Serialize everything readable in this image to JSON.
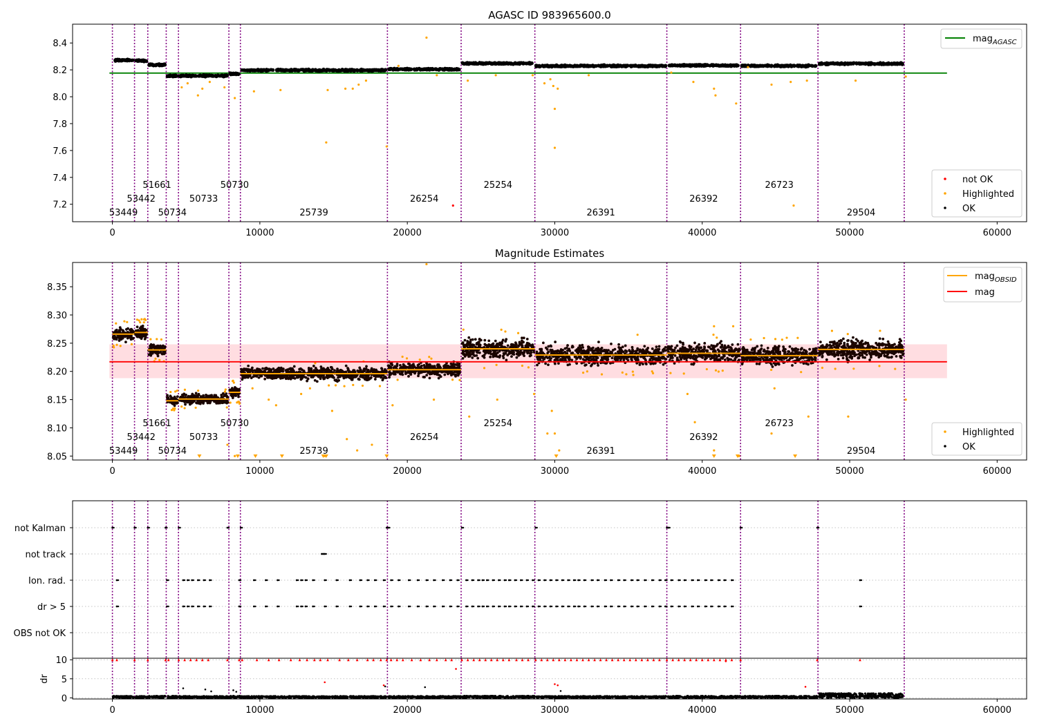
{
  "chart_data": [
    {
      "type": "scatter",
      "title": "AGASC ID 983965600.0",
      "xlim": [
        -2700,
        62000
      ],
      "ylim": [
        7.07,
        8.54
      ],
      "xticks": [
        0,
        10000,
        20000,
        30000,
        40000,
        50000,
        60000
      ],
      "yticks": [
        7.2,
        7.4,
        7.6,
        7.8,
        8.0,
        8.2,
        8.4
      ],
      "ytick_labels": [
        "7.2",
        "7.4",
        "7.6",
        "7.8",
        "8.0",
        "8.2",
        "8.4"
      ],
      "legend_upper": {
        "placement": "top-right",
        "entries": [
          {
            "label_main": "mag",
            "label_sub": "AGASC",
            "color": "#008000",
            "kind": "line"
          }
        ]
      },
      "legend_lower": {
        "placement": "bottom-right",
        "entries": [
          {
            "label": "not OK",
            "color": "#ff0000",
            "kind": "dot"
          },
          {
            "label": "Highlighted",
            "color": "#ffa500",
            "kind": "dot"
          },
          {
            "label": "OK",
            "color": "#000000",
            "kind": "dot"
          }
        ]
      },
      "reference_line": {
        "y": 8.176,
        "x_range": [
          -200,
          56600
        ],
        "color": "#008000"
      },
      "band_values": [
        8.272,
        8.268,
        8.238,
        8.155,
        8.156,
        8.171,
        8.197,
        8.204,
        8.248,
        8.229,
        8.233,
        8.23,
        8.246,
        8.242,
        8.22
      ],
      "highlighted_points": [
        [
          4700,
          8.07
        ],
        [
          5100,
          8.1
        ],
        [
          5800,
          8.01
        ],
        [
          6100,
          8.06
        ],
        [
          6600,
          8.11
        ],
        [
          7600,
          8.07
        ],
        [
          8300,
          7.99
        ],
        [
          9600,
          8.04
        ],
        [
          11400,
          8.05
        ],
        [
          14500,
          7.66
        ],
        [
          14600,
          8.05
        ],
        [
          15800,
          8.06
        ],
        [
          16300,
          8.06
        ],
        [
          16700,
          8.09
        ],
        [
          17200,
          8.12
        ],
        [
          18600,
          7.63
        ],
        [
          19400,
          8.23
        ],
        [
          21300,
          8.44
        ],
        [
          22000,
          8.16
        ],
        [
          24100,
          8.12
        ],
        [
          26000,
          8.16
        ],
        [
          28500,
          8.16
        ],
        [
          29300,
          8.1
        ],
        [
          29700,
          8.13
        ],
        [
          29900,
          8.08
        ],
        [
          30000,
          7.91
        ],
        [
          30200,
          8.06
        ],
        [
          30000,
          7.62
        ],
        [
          32300,
          8.16
        ],
        [
          37900,
          8.18
        ],
        [
          39400,
          8.11
        ],
        [
          40800,
          8.06
        ],
        [
          40900,
          8.01
        ],
        [
          42300,
          7.95
        ],
        [
          43100,
          8.22
        ],
        [
          44700,
          8.09
        ],
        [
          46200,
          7.19
        ],
        [
          46000,
          8.11
        ],
        [
          47100,
          8.12
        ],
        [
          50400,
          8.12
        ],
        [
          53800,
          8.15
        ]
      ],
      "not_ok_points": [
        [
          23100,
          7.19
        ]
      ]
    },
    {
      "type": "scatter",
      "title": "Magnitude Estimates",
      "xlim": [
        -2700,
        62000
      ],
      "ylim": [
        8.043,
        8.393
      ],
      "xticks": [
        0,
        10000,
        20000,
        30000,
        40000,
        50000,
        60000
      ],
      "yticks": [
        8.05,
        8.1,
        8.15,
        8.2,
        8.25,
        8.3,
        8.35
      ],
      "ytick_labels": [
        "8.05",
        "8.10",
        "8.15",
        "8.20",
        "8.25",
        "8.30",
        "8.35"
      ],
      "legend_upper": {
        "placement": "top-right",
        "entries": [
          {
            "label_main": "mag",
            "label_sub": "OBSID",
            "color": "#ffa500",
            "kind": "line"
          },
          {
            "label_main": "mag",
            "label_sub": "",
            "color": "#ff0000",
            "kind": "line"
          }
        ]
      },
      "legend_lower": {
        "placement": "bottom-right",
        "entries": [
          {
            "label": "Highlighted",
            "color": "#ffa500",
            "kind": "dot"
          },
          {
            "label": "OK",
            "color": "#000000",
            "kind": "dot"
          }
        ]
      },
      "mean_line": {
        "y": 8.217,
        "x_range": [
          -200,
          56600
        ],
        "color": "#ff0000"
      },
      "std_band": {
        "y_range": [
          8.188,
          8.248
        ],
        "color": "#ffdde1"
      },
      "obsid_mags": [
        8.266,
        8.269,
        8.238,
        8.148,
        8.151,
        8.163,
        8.196,
        8.203,
        8.24,
        8.229,
        8.232,
        8.228,
        8.239,
        8.233,
        8.219
      ],
      "band_spread": [
        0.016,
        0.016,
        0.014,
        0.012,
        0.012,
        0.014,
        0.016,
        0.016,
        0.024,
        0.024,
        0.024,
        0.022,
        0.024,
        0.02,
        0.026
      ],
      "highlighted_points": [
        [
          9500,
          8.17
        ],
        [
          10600,
          8.15
        ],
        [
          11100,
          8.14
        ],
        [
          12800,
          8.16
        ],
        [
          13400,
          8.17
        ],
        [
          14400,
          8.05
        ],
        [
          14900,
          8.13
        ],
        [
          15900,
          8.08
        ],
        [
          16600,
          8.06
        ],
        [
          17600,
          8.07
        ],
        [
          19000,
          8.14
        ],
        [
          21300,
          8.39
        ],
        [
          21800,
          8.15
        ],
        [
          24200,
          8.12
        ],
        [
          26100,
          8.15
        ],
        [
          28600,
          8.16
        ],
        [
          29500,
          8.09
        ],
        [
          29800,
          8.13
        ],
        [
          30000,
          8.09
        ],
        [
          30300,
          8.06
        ],
        [
          32200,
          8.2
        ],
        [
          36600,
          8.2
        ],
        [
          39000,
          8.16
        ],
        [
          39500,
          8.11
        ],
        [
          40800,
          8.28
        ],
        [
          40800,
          8.06
        ],
        [
          42100,
          8.28
        ],
        [
          42500,
          8.05
        ],
        [
          44700,
          8.09
        ],
        [
          44900,
          8.17
        ],
        [
          47200,
          8.12
        ],
        [
          49900,
          8.12
        ],
        [
          53800,
          8.15
        ],
        [
          7800,
          8.07
        ],
        [
          8300,
          8.05
        ]
      ],
      "lower_limit_markers": [
        5900,
        8500,
        9700,
        11500,
        14300,
        14500,
        18600,
        30100,
        40800,
        42400,
        46300
      ]
    },
    {
      "type": "scatter",
      "title": "",
      "xlim": [
        -2700,
        62000
      ],
      "category_labels": [
        "not Kalman",
        "not track",
        "Ion. rad.",
        "dr > 5",
        "OBS not OK"
      ],
      "xticks": [
        0,
        10000,
        20000,
        30000,
        40000,
        50000,
        60000
      ],
      "category_points": {
        "not Kalman": [
          0,
          1500,
          2400,
          3600,
          4500,
          7800,
          8700,
          18600,
          18700,
          23700,
          28700,
          37600,
          37700,
          42600,
          47800
        ],
        "not track": [
          14200,
          14300,
          14400
        ],
        "Ion. rad.": [
          300,
          3700,
          4800,
          5100,
          5400,
          5800,
          6200,
          6600,
          8600,
          9600,
          10400,
          11200,
          12500,
          12800,
          13100,
          13600,
          14400,
          15200,
          16100,
          16800,
          17300,
          17800,
          18400,
          18900,
          19400,
          20100,
          20700,
          21300,
          21800,
          22400,
          22900,
          23400,
          24000,
          24400,
          24800,
          25100,
          25400,
          25800,
          26200,
          26600,
          26900,
          27300,
          27700,
          28100,
          28500,
          28900,
          29300,
          29700,
          30100,
          30500,
          30900,
          31300,
          31600,
          32000,
          32500,
          32900,
          33400,
          33800,
          34300,
          34700,
          35200,
          35600,
          36100,
          36600,
          37100,
          37500,
          37900,
          38400,
          38800,
          39300,
          39700,
          40200,
          40600,
          41100,
          41500,
          42000,
          50700
        ],
        "dr > 5": [
          300,
          3700,
          4800,
          5100,
          5400,
          5800,
          6200,
          6600,
          8600,
          9600,
          10400,
          11200,
          12500,
          12800,
          13100,
          13600,
          14400,
          15200,
          16100,
          16800,
          17300,
          17800,
          18400,
          18900,
          19400,
          20100,
          20700,
          21300,
          21800,
          22400,
          22900,
          23400,
          24000,
          24400,
          24800,
          25100,
          25400,
          25800,
          26200,
          26600,
          26900,
          27300,
          27700,
          28100,
          28500,
          28900,
          29300,
          29700,
          30100,
          30500,
          30900,
          31300,
          31600,
          32000,
          32500,
          32900,
          33400,
          33800,
          34300,
          34700,
          35200,
          35600,
          36100,
          36600,
          37100,
          37500,
          37900,
          38400,
          38800,
          39300,
          39700,
          40200,
          40600,
          41100,
          41500,
          42000,
          50700
        ],
        "OBS not OK": []
      },
      "grid": true
    },
    {
      "type": "scatter",
      "title": "",
      "xlim": [
        -2700,
        62000
      ],
      "ylim": [
        -0.3,
        10.4
      ],
      "yticks": [
        0,
        5,
        10
      ],
      "ylabel": "dr",
      "xticks": [
        0,
        10000,
        20000,
        30000,
        40000,
        50000,
        60000
      ],
      "grid": true,
      "red_points_at_10": [
        0,
        300,
        1500,
        2400,
        3600,
        3800,
        4500,
        4900,
        5300,
        5700,
        6100,
        6500,
        7800,
        8600,
        8800,
        9800,
        10600,
        11300,
        12100,
        12700,
        13200,
        13700,
        14100,
        14600,
        15400,
        16000,
        16600,
        17300,
        17700,
        18200,
        18600,
        18900,
        19300,
        19700,
        20300,
        20900,
        21500,
        22000,
        22600,
        23000,
        23700,
        24100,
        24500,
        24900,
        25300,
        25700,
        26100,
        26500,
        26900,
        27400,
        27800,
        28200,
        28700,
        29100,
        29500,
        29900,
        30300,
        30700,
        31100,
        31500,
        31900,
        32300,
        32700,
        33100,
        33500,
        33900,
        34300,
        34700,
        35100,
        35500,
        35900,
        36300,
        36700,
        37100,
        37600,
        38000,
        38400,
        38800,
        39200,
        39600,
        40000,
        40400,
        40800,
        41200,
        41600,
        42000,
        42600,
        47800,
        50700
      ],
      "red_points_other": [
        [
          23300,
          7.6
        ],
        [
          14400,
          4.1
        ],
        [
          30000,
          3.6
        ],
        [
          30200,
          3.3
        ],
        [
          47000,
          2.9
        ],
        [
          18400,
          3.3
        ],
        [
          41600,
          9.6
        ]
      ],
      "black_points_other": [
        [
          6300,
          2.2
        ],
        [
          6700,
          1.7
        ],
        [
          8200,
          2.0
        ],
        [
          8400,
          1.6
        ],
        [
          4800,
          2.5
        ],
        [
          21200,
          2.8
        ],
        [
          18500,
          3.0
        ],
        [
          30400,
          1.8
        ]
      ],
      "dr_bands": [
        0.5,
        0.45,
        0.5,
        0.5,
        0.45,
        0.5,
        0.45,
        0.45,
        0.5,
        0.45,
        0.5,
        0.5,
        1.2,
        1.1,
        0.9
      ]
    }
  ],
  "shared": {
    "obsid_boundaries": [
      0,
      1500,
      2400,
      3650,
      4480,
      7900,
      8680,
      18650,
      23650,
      28650,
      37600,
      42600,
      47850,
      53700
    ],
    "obsid_labels": [
      {
        "text": "53449",
        "x": 750,
        "row": 0
      },
      {
        "text": "53442",
        "x": 1950,
        "row": 1
      },
      {
        "text": "51661",
        "x": 3025,
        "row": 2
      },
      {
        "text": "50734",
        "x": 4065,
        "row": 0
      },
      {
        "text": "50733",
        "x": 6190,
        "row": 1
      },
      {
        "text": "50730",
        "x": 8290,
        "row": 2
      },
      {
        "text": "25739",
        "x": 13665,
        "row": 0
      },
      {
        "text": "26254",
        "x": 21150,
        "row": 1
      },
      {
        "text": "25254",
        "x": 26150,
        "row": 2
      },
      {
        "text": "26391",
        "x": 33125,
        "row": 0
      },
      {
        "text": "26392",
        "x": 40100,
        "row": 1
      },
      {
        "text": "26723",
        "x": 45225,
        "row": 2
      },
      {
        "text": "29504",
        "x": 50775,
        "row": 0
      }
    ],
    "colors": {
      "boundary": "#800080",
      "ok": "#000000",
      "highlighted": "#ffa500",
      "not_ok": "#ff0000"
    }
  }
}
